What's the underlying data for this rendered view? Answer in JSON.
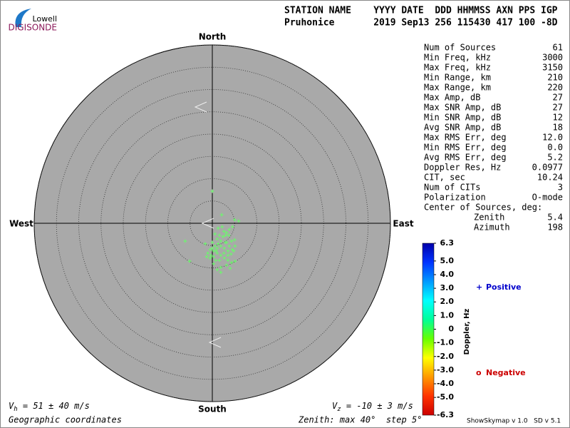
{
  "chart_data": {
    "type": "skymap",
    "logo": {
      "top": "Lowell",
      "bottom": "DIGISONDE"
    },
    "header": [
      "STATION NAME    YYYY DATE  DDD HHMMSS AXN PPS IGP",
      "Pruhonice       2019 Sep13 256 115430 417 100 -8D"
    ],
    "directions": {
      "north": "North",
      "south": "South",
      "west": "West",
      "east": "East"
    },
    "rlim": [
      0,
      40
    ],
    "rticks": [
      5,
      10,
      15,
      20,
      25,
      30,
      35,
      40
    ],
    "point_color": "#66ff66",
    "x": [
      0,
      2.1,
      5.0,
      5.9,
      4.5,
      3.8,
      3.0,
      2.4,
      1.6,
      1.1,
      1.9,
      3.2,
      4.3,
      5.0,
      5.1,
      4.5,
      3.5,
      2.7,
      1.9,
      1.1,
      0.3,
      -0.5,
      -1.0,
      -0.3,
      0.3,
      1.1,
      1.9,
      2.7,
      3.5,
      4.3,
      3.2,
      1.9,
      1.1,
      0.3,
      -0.5,
      -1.3,
      -1.6,
      -6.1,
      -5.1,
      4.0,
      5.1,
      2.2,
      1.3,
      0.6,
      0,
      0.6,
      1.3,
      2.6,
      3.5,
      4.2,
      4.8,
      1.6,
      0.8,
      2.9,
      3.7,
      3.2,
      2.6,
      3.8,
      1.9,
      0.8,
      0
    ],
    "y": [
      7.2,
      1.9,
      0.8,
      0.5,
      -0.8,
      -1.4,
      -2.7,
      -3.0,
      -2.7,
      -3.5,
      -4.0,
      -4.3,
      -4.0,
      -3.7,
      -5.1,
      -5.9,
      -6.2,
      -5.6,
      -5.1,
      -5.6,
      -6.2,
      -5.9,
      -6.7,
      -7.2,
      -7.5,
      -6.7,
      -7.2,
      -7.8,
      -8.3,
      -8.8,
      -9.4,
      -9.9,
      -10.4,
      -9.1,
      -7.8,
      -7.5,
      -4.6,
      -4.0,
      -8.5,
      -10.1,
      -8.5,
      -0.8,
      -1.1,
      -2.4,
      -4.3,
      -5.1,
      -4.6,
      -6.7,
      -7.2,
      -6.9,
      -6.2,
      -8.3,
      -8.3,
      -4.3,
      -2.7,
      -2.1,
      -1.8,
      -5.1,
      -11.0,
      -6.2,
      -5.6
    ],
    "stats": [
      [
        "Num of Sources",
        "61"
      ],
      [
        "Min Freq, kHz",
        "3000"
      ],
      [
        "Max Freq, kHz",
        "3150"
      ],
      [
        "Min Range, km",
        "210"
      ],
      [
        "Max Range, km",
        "220"
      ],
      [
        "Max Amp, dB",
        "27"
      ],
      [
        "Max SNR Amp, dB",
        "27"
      ],
      [
        "Min SNR Amp, dB",
        "12"
      ],
      [
        "Avg SNR Amp, dB",
        "18"
      ],
      [
        "Max RMS Err, deg",
        "12.0"
      ],
      [
        "Min RMS Err, deg",
        "0.0"
      ],
      [
        "Avg RMS Err, deg",
        "5.2"
      ],
      [
        "Doppler Res, Hz",
        "0.0977"
      ],
      [
        "CIT, sec",
        "10.24"
      ],
      [
        "Num of CITs",
        "3"
      ],
      [
        "Polarization",
        "O-mode"
      ],
      [
        "Center of Sources, deg:",
        ""
      ]
    ],
    "center": [
      [
        "Zenith",
        "5.4"
      ],
      [
        "Azimuth",
        "198"
      ]
    ],
    "colorbar": {
      "label": "Doppler, Hz",
      "clim": [
        -6.3,
        6.3
      ],
      "colors": [
        "#cc0000",
        "#ff3300",
        "#ff9900",
        "#ffff00",
        "#66ff00",
        "#00ff99",
        "#00ffff",
        "#0099ff",
        "#0033ff",
        "#0000aa"
      ],
      "ticks": [
        6.3,
        {
          "value": 5,
          "label": "5.0"
        },
        {
          "value": 4,
          "label": "4.0"
        },
        {
          "value": 3,
          "label": "3.0"
        },
        {
          "value": 2,
          "label": "2.0"
        },
        {
          "value": 1,
          "label": "1.0"
        },
        0,
        {
          "value": -1,
          "label": "-1.0"
        },
        {
          "value": -2,
          "label": "-2.0"
        },
        {
          "value": -3,
          "label": "-3.0"
        },
        {
          "value": -4,
          "label": "-4.0"
        },
        {
          "value": -5,
          "label": "-5.0"
        },
        -6.3
      ]
    },
    "legend": {
      "positive_symbol": "+",
      "positive": "Positive",
      "negative_symbol": "o",
      "negative": "Negative"
    },
    "vh": {
      "symbol": "V",
      "sub": "h",
      "text": " = 51 ± 40 m/s"
    },
    "vz": {
      "symbol": "V",
      "sub": "z",
      "text": " = -10 ± 3 m/s"
    },
    "footer_left": "Geographic coordinates",
    "footer_mid": "Zenith: max 40°  step 5°",
    "footer_right": "ShowSkymap v 1.0   SD v 5.1"
  }
}
